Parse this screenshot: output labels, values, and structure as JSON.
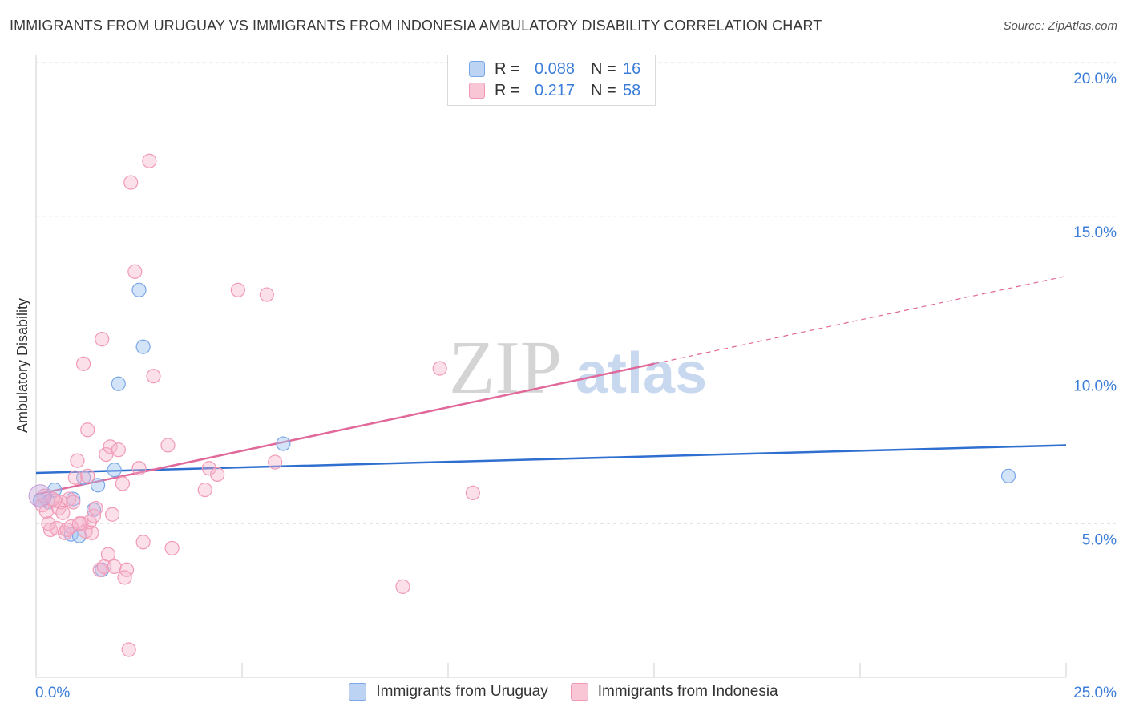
{
  "title": "IMMIGRANTS FROM URUGUAY VS IMMIGRANTS FROM INDONESIA AMBULATORY DISABILITY CORRELATION CHART",
  "source": "Source: ZipAtlas.com",
  "watermark": {
    "zip": "ZIP",
    "atlas": "atlas"
  },
  "legend": {
    "rows": [
      {
        "r_label": "R =",
        "r_value": "0.088",
        "n_label": "N =",
        "n_value": "16",
        "color": "#7aa7e8"
      },
      {
        "r_label": "R =",
        "r_value": "0.217",
        "n_label": "N =",
        "n_value": "58",
        "color": "#f19ab6"
      }
    ],
    "bottom": [
      "Immigrants from Uruguay",
      "Immigrants from Indonesia"
    ]
  },
  "chart_data": {
    "type": "scatter",
    "title": "IMMIGRANTS FROM URUGUAY VS IMMIGRANTS FROM INDONESIA AMBULATORY DISABILITY CORRELATION CHART",
    "xlabel": "",
    "ylabel": "Ambulatory Disability",
    "xlim": [
      0,
      25
    ],
    "ylim": [
      0,
      20
    ],
    "x_tick_labels": [
      "0.0%",
      "25.0%"
    ],
    "y_ticks": [
      5,
      10,
      15,
      20
    ],
    "y_tick_labels": [
      "5.0%",
      "10.0%",
      "15.0%",
      "20.0%"
    ],
    "grid": true,
    "series": [
      {
        "name": "Immigrants from Uruguay",
        "color": "#7aa7e8",
        "line_color": "#2f6fcf",
        "x": [
          0.1,
          0.45,
          0.9,
          0.85,
          1.05,
          1.4,
          1.5,
          1.9,
          2.5,
          2.6,
          2.0,
          1.6,
          0.3,
          1.15,
          6.0,
          23.6
        ],
        "y": [
          5.75,
          6.1,
          5.8,
          4.65,
          4.6,
          5.45,
          6.25,
          6.75,
          12.6,
          10.75,
          9.55,
          3.5,
          5.7,
          6.5,
          7.6,
          6.55
        ],
        "trend": {
          "x": [
            0,
            25
          ],
          "y": [
            6.65,
            7.55
          ]
        }
      },
      {
        "name": "Immigrants from Indonesia",
        "color": "#f19ab6",
        "line_color": "#e0689a",
        "x": [
          0.15,
          0.2,
          0.25,
          0.35,
          0.3,
          0.5,
          0.55,
          0.6,
          0.7,
          0.8,
          0.95,
          1.0,
          1.1,
          1.2,
          1.25,
          1.3,
          1.35,
          1.4,
          1.45,
          1.55,
          1.65,
          1.7,
          1.8,
          1.85,
          1.9,
          2.0,
          2.1,
          2.2,
          2.25,
          2.4,
          2.5,
          2.6,
          2.75,
          2.85,
          3.2,
          3.3,
          4.1,
          4.2,
          4.4,
          4.9,
          5.6,
          5.8,
          8.9,
          9.8,
          10.6,
          0.45,
          0.65,
          0.85,
          1.15,
          1.6,
          2.3,
          0.4,
          0.75,
          1.05,
          1.75,
          0.9,
          2.15,
          1.25
        ],
        "y": [
          5.6,
          5.9,
          5.4,
          4.8,
          5.0,
          4.85,
          5.5,
          5.7,
          4.7,
          5.8,
          6.5,
          7.05,
          5.0,
          4.75,
          8.05,
          5.05,
          4.7,
          5.25,
          5.5,
          3.5,
          3.6,
          7.25,
          7.5,
          5.3,
          3.6,
          7.4,
          6.3,
          3.5,
          0.9,
          13.2,
          6.8,
          4.4,
          16.8,
          9.8,
          7.55,
          4.2,
          6.1,
          6.8,
          6.6,
          12.6,
          12.45,
          7.0,
          2.95,
          10.05,
          6.0,
          5.75,
          5.35,
          4.9,
          10.2,
          11.0,
          16.1,
          5.8,
          4.8,
          5.0,
          4.0,
          5.7,
          3.25,
          6.55
        ],
        "trend": {
          "x": [
            0,
            15
          ],
          "y": [
            5.95,
            10.2
          ]
        },
        "trend_extension": {
          "x": [
            15,
            25
          ],
          "y": [
            10.2,
            13.05
          ]
        }
      }
    ]
  }
}
